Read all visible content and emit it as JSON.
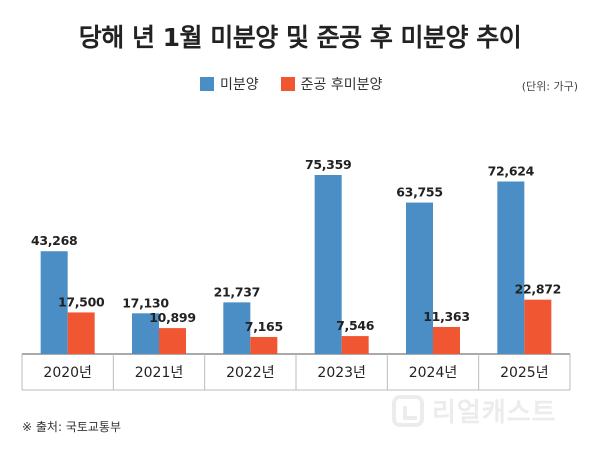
{
  "chart_data": {
    "type": "bar",
    "title": "당해 년 1월 미분양 및 준공 후 미분양 추이",
    "unit_label": "(단위: 가구)",
    "categories": [
      "2020년",
      "2021년",
      "2022년",
      "2023년",
      "2024년",
      "2025년"
    ],
    "series": [
      {
        "name": "미분양",
        "color": "#4a8ec5",
        "values": [
          43268,
          17130,
          21737,
          75359,
          63755,
          72624
        ],
        "labels": [
          "43,268",
          "17,130",
          "21,737",
          "75,359",
          "63,755",
          "72,624"
        ]
      },
      {
        "name": "준공 후미분양",
        "color": "#ef5631",
        "values": [
          17500,
          10899,
          7165,
          7546,
          11363,
          22872
        ],
        "labels": [
          "17,500",
          "10,899",
          "7,165",
          "7,546",
          "11,363",
          "22,872"
        ]
      }
    ],
    "ylim": [
      0,
      80000
    ],
    "xlabel": "",
    "ylabel": ""
  },
  "source": "※ 출처: 국토교통부",
  "watermark": "리얼캐스트",
  "colors": {
    "axis_line": "#555555",
    "grid_line": "#bbbbbb"
  }
}
